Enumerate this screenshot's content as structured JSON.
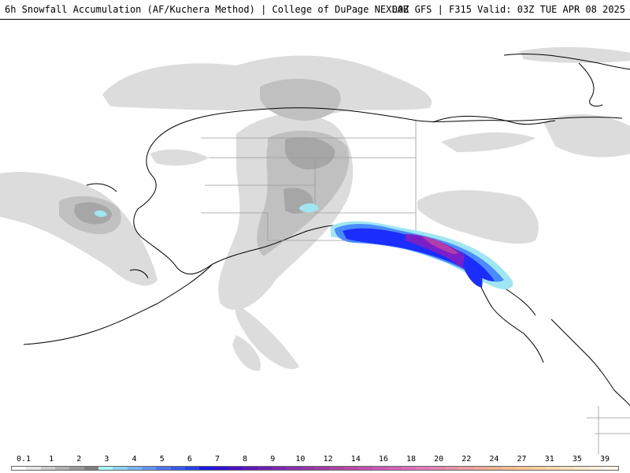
{
  "header": {
    "left_title": "6h Snowfall Accumulation (AF/Kuchera Method) | College of DuPage NEXLAB",
    "right_title": "00Z GFS | F315 Valid: 03Z TUE APR 08 2025"
  },
  "colors": {
    "ocean": "#ffffff",
    "land": "#ffffff",
    "coastline": "#000000",
    "boundaries": "#9a9a9a",
    "snow_light": "#dcdcdc",
    "snow_mid": "#c8c8c8",
    "snow_dark": "#a8a8a8",
    "snow_darker": "#8c8c8c",
    "snow_cyan": "#9fe6f0",
    "snow_blue": "#4a8cff",
    "snow_deepblue": "#1c2dff",
    "snow_purple": "#7a1fc8",
    "snow_magenta": "#b43ca8"
  },
  "scale": {
    "labels": [
      "0.1",
      "1",
      "2",
      "3",
      "4",
      "5",
      "6",
      "7",
      "8",
      "9",
      "10",
      "12",
      "14",
      "16",
      "18",
      "20",
      "22",
      "24",
      "27",
      "31",
      "35",
      "39"
    ],
    "swatches": [
      "#ffffff",
      "#e6e6e6",
      "#cccccc",
      "#b3b3b3",
      "#999999",
      "#7f7f7f",
      "#a9f3f7",
      "#8fd4f5",
      "#78b4f2",
      "#6495ef",
      "#4d78ec",
      "#3a5ae8",
      "#2843e6",
      "#1a1ae6",
      "#3010d8",
      "#4a10c8",
      "#5e18bc",
      "#6e20b4",
      "#7c28b0",
      "#8a30ac",
      "#9636a8",
      "#a03ca4",
      "#ac44a4",
      "#b84aa8",
      "#c450b0",
      "#cc5ab8",
      "#d464bc",
      "#dc70bc",
      "#e07cb8",
      "#e488b0",
      "#e894a8",
      "#eca0a0",
      "#eeaa98",
      "#f0b494",
      "#f2be92",
      "#f4c896",
      "#f6d0a0",
      "#f8d8ac",
      "#fae0bc",
      "#fce8cc",
      "#fdf0dc",
      "#fef6ea"
    ]
  }
}
